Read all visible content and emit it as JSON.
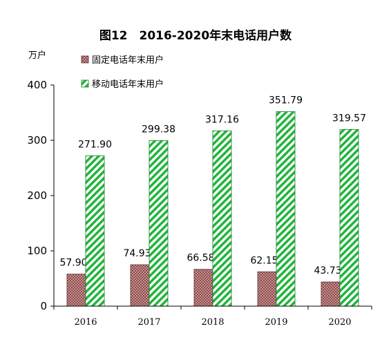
{
  "chart_data": {
    "type": "bar",
    "title": "图12　2016-2020年末电话用户数",
    "ylabel": "万户",
    "xlabel": "",
    "ylim": [
      0,
      400
    ],
    "yticks": [
      0,
      100,
      200,
      300,
      400
    ],
    "categories": [
      "2016",
      "2017",
      "2018",
      "2019",
      "2020"
    ],
    "series": [
      {
        "name": "固定电话年末用户",
        "values": [
          57.9,
          74.93,
          66.58,
          62.15,
          43.73
        ],
        "labels": [
          "57.90",
          "74.93",
          "66.58",
          "62.15",
          "43.73"
        ],
        "color": "#c0504d",
        "pattern": "crosshatch-brown"
      },
      {
        "name": "移动电话年末用户",
        "values": [
          271.9,
          299.38,
          317.16,
          351.79,
          319.57
        ],
        "labels": [
          "271.90",
          "299.38",
          "317.16",
          "351.79",
          "319.57"
        ],
        "color": "#22b14c",
        "pattern": "diagonal-green"
      }
    ],
    "legend": "top-left",
    "grid": false
  }
}
